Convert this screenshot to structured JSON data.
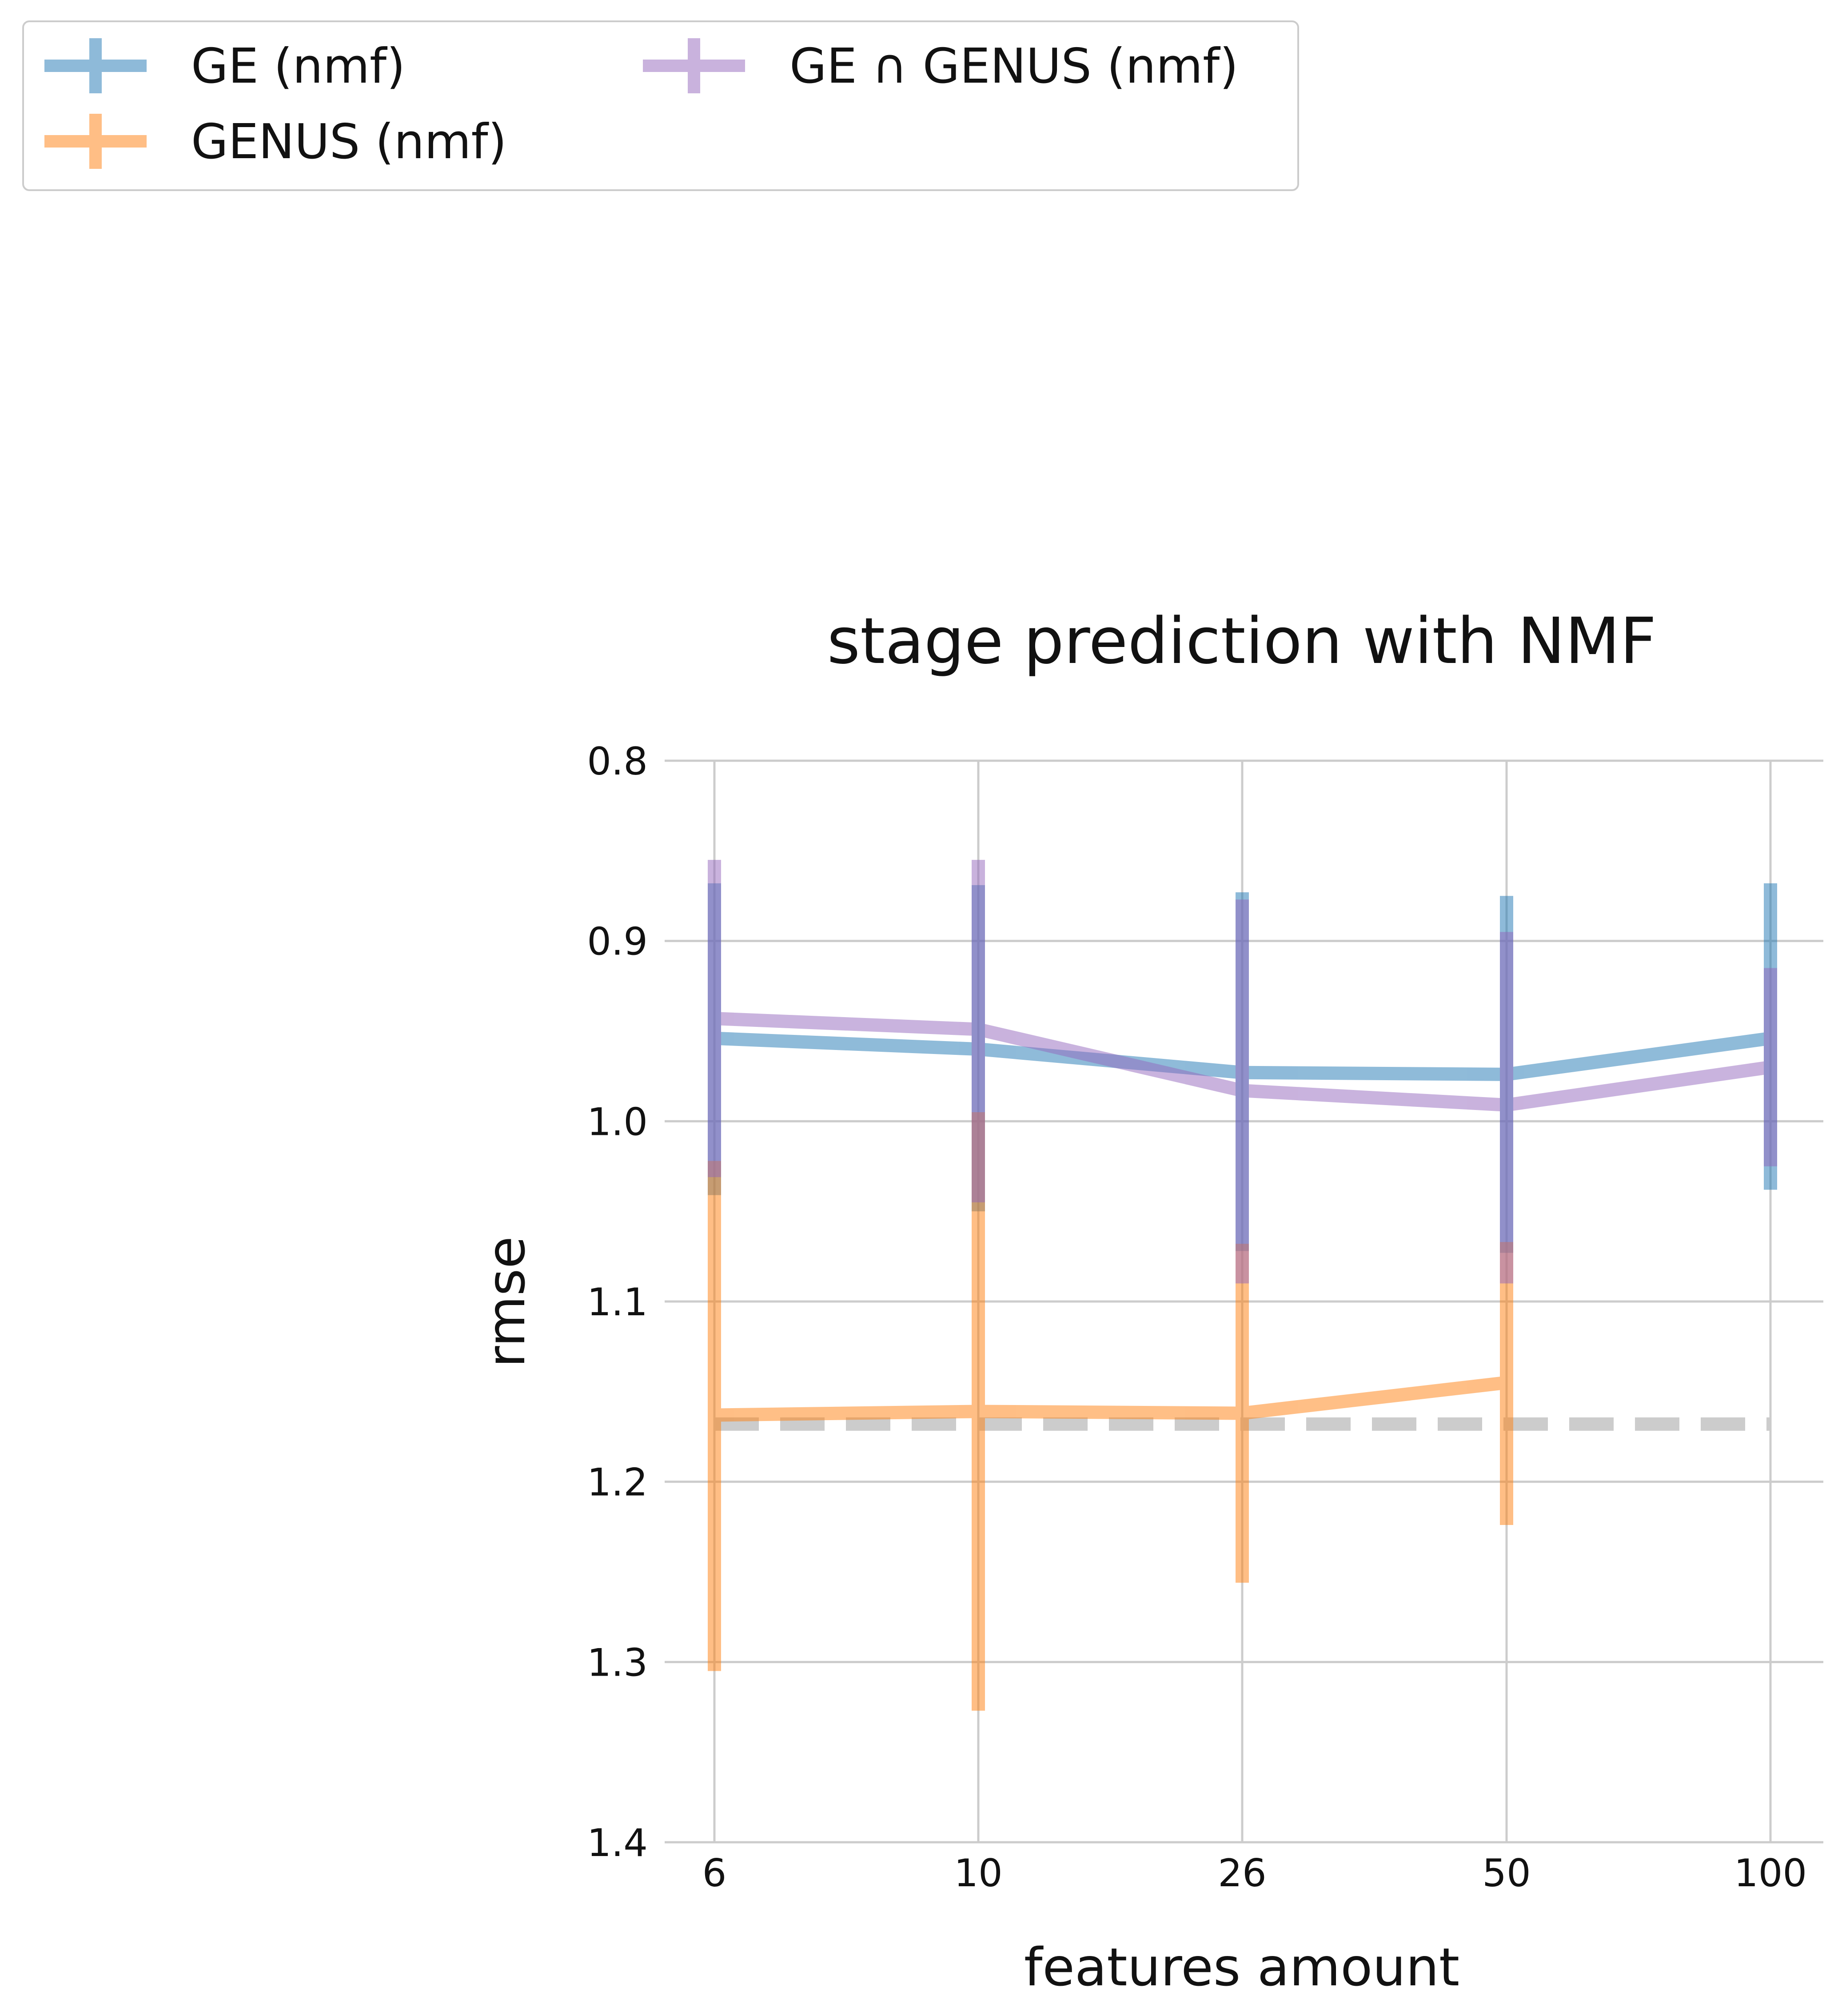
{
  "chart_data": {
    "type": "line",
    "title": "stage prediction with NMF",
    "xlabel": "features amount",
    "ylabel": "rmse",
    "x_categories": [
      "6",
      "10",
      "26",
      "50",
      "100"
    ],
    "ylim": [
      1.4,
      0.8
    ],
    "y_inverted": true,
    "yticks": [
      "0.8",
      "0.9",
      "1.0",
      "1.1",
      "1.2",
      "1.3",
      "1.4"
    ],
    "grid": true,
    "legend_position": "top-left, outside plot",
    "series": [
      {
        "name": "GE (nmf)",
        "color": "#1f77b4",
        "values": [
          0.954,
          0.96,
          0.973,
          0.974,
          0.954
        ],
        "error_low": [
          0.868,
          0.869,
          0.873,
          0.875,
          0.868
        ],
        "error_high": [
          1.041,
          1.05,
          1.072,
          1.073,
          1.038
        ]
      },
      {
        "name": "GENUS (nmf)",
        "color": "#ff7f0e",
        "values": [
          1.163,
          1.161,
          1.162,
          1.145,
          null
        ],
        "error_low": [
          1.022,
          0.995,
          1.068,
          1.067,
          null
        ],
        "error_high": [
          1.305,
          1.327,
          1.256,
          1.224,
          null
        ]
      },
      {
        "name": "GE ∩ GENUS (nmf)",
        "color": "#9467bd",
        "values": [
          0.943,
          0.949,
          0.983,
          0.991,
          0.97
        ],
        "error_low": [
          0.855,
          0.855,
          0.877,
          0.895,
          0.915
        ],
        "error_high": [
          1.031,
          1.045,
          1.09,
          1.09,
          1.025
        ]
      }
    ],
    "reference_line": {
      "value": 1.168,
      "style": "dashed",
      "color": "#cccccc"
    }
  }
}
